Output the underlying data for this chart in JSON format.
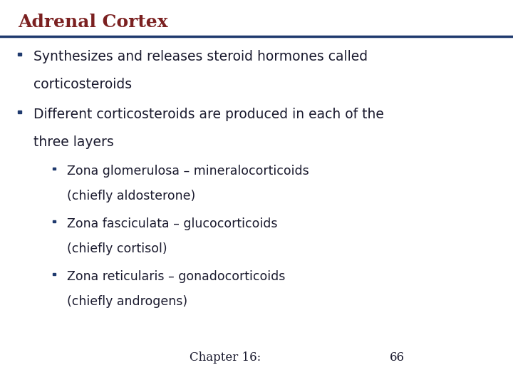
{
  "title": "Adrenal Cortex",
  "title_color": "#7B2020",
  "title_fontsize": 18,
  "line_color": "#1F3A6E",
  "background_color": "#FFFFFF",
  "text_color": "#1a1a2e",
  "bullet_color": "#1F3A6E",
  "footer_chapter": "Chapter 16:",
  "footer_page": "66",
  "bullet1_line1": "Synthesizes and releases steroid hormones called",
  "bullet1_line2": "corticosteroids",
  "bullet2_line1": "Different corticosteroids are produced in each of the",
  "bullet2_line2": "three layers",
  "sub_bullet1_line1": "Zona glomerulosa – mineralocorticoids",
  "sub_bullet1_line2": "(chiefly aldosterone)",
  "sub_bullet2_line1": "Zona fasciculata – glucocorticoids",
  "sub_bullet2_line2": "(chiefly cortisol)",
  "sub_bullet3_line1": "Zona reticularis – gonadocorticoids",
  "sub_bullet3_line2": "(chiefly androgens)",
  "main_fontsize": 13.5,
  "sub_fontsize": 12.5,
  "footer_fontsize": 12
}
